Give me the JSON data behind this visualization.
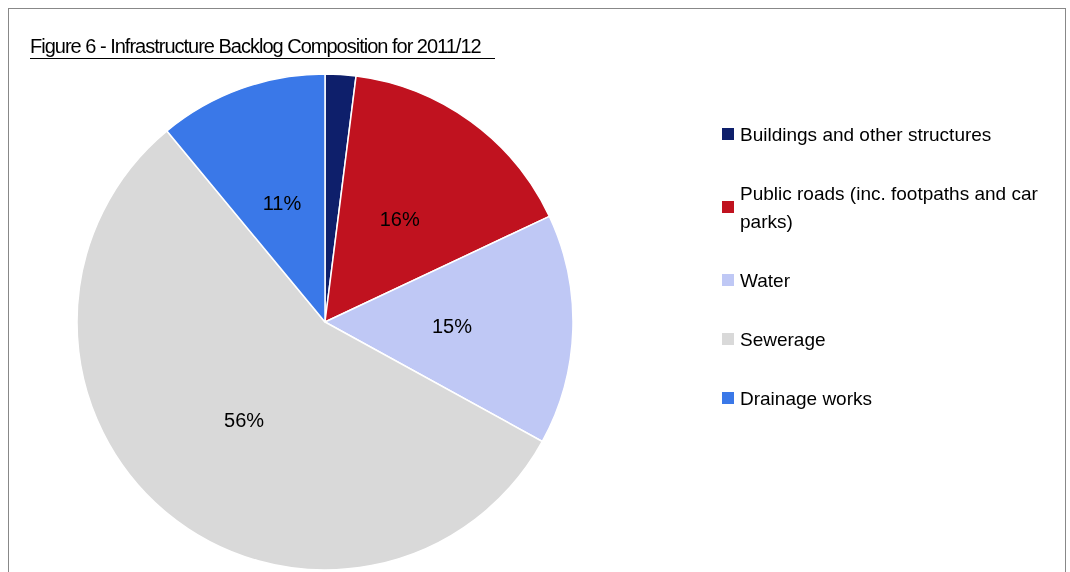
{
  "chart_data": {
    "type": "pie",
    "title": "Figure 6 - Infrastructure Backlog Composition for 2011/12",
    "categories": [
      "Buildings and other structures",
      "Public roads (inc. footpaths and car parks)",
      "Water",
      "Sewerage",
      "Drainage works"
    ],
    "values": [
      2,
      16,
      15,
      56,
      11
    ],
    "colors": [
      "#0e1f6b",
      "#c0121f",
      "#bfc8f5",
      "#d9d9d9",
      "#3a78e8"
    ],
    "value_labels": [
      null,
      "16%",
      "15%",
      "56%",
      "11%"
    ],
    "legend": "right"
  }
}
